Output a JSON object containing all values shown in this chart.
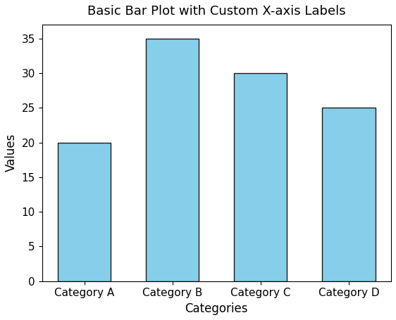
{
  "categories": [
    "Category A",
    "Category B",
    "Category C",
    "Category D"
  ],
  "values": [
    20,
    35,
    30,
    25
  ],
  "bar_color": "#87CEEB",
  "bar_edgecolor": "#1a1a1a",
  "title": "Basic Bar Plot with Custom X-axis Labels",
  "xlabel": "Categories",
  "ylabel": "Values",
  "ylim": [
    0,
    37
  ],
  "yticks": [
    0,
    5,
    10,
    15,
    20,
    25,
    30,
    35
  ],
  "title_fontsize": 13,
  "label_fontsize": 12,
  "tick_fontsize": 11,
  "bar_width": 0.6
}
